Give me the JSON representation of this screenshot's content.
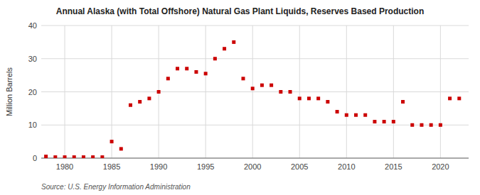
{
  "chart_data": {
    "type": "scatter",
    "title": "Annual Alaska (with Total Offshore) Natural Gas Plant Liquids, Reserves Based Production",
    "y_label": "Million Barrels",
    "source": "Source: U.S. Energy Information Administration",
    "color": "#cc0000",
    "marker": "square",
    "grid": true,
    "xlim": [
      1977.5,
      2023
    ],
    "ylim": [
      0,
      40
    ],
    "xticks": [
      1980,
      1985,
      1990,
      1995,
      2000,
      2005,
      2010,
      2015,
      2020
    ],
    "yticks": [
      0,
      10,
      20,
      30,
      40
    ],
    "x": [
      1978,
      1979,
      1980,
      1981,
      1982,
      1983,
      1984,
      1985,
      1986,
      1987,
      1988,
      1989,
      1990,
      1991,
      1992,
      1993,
      1994,
      1995,
      1996,
      1997,
      1998,
      1999,
      2000,
      2001,
      2002,
      2003,
      2004,
      2005,
      2006,
      2007,
      2008,
      2009,
      2010,
      2011,
      2012,
      2013,
      2014,
      2015,
      2016,
      2017,
      2018,
      2019,
      2020,
      2021,
      2022
    ],
    "values": [
      0.5,
      0.3,
      0.3,
      0.3,
      0.3,
      0.3,
      0.3,
      5.0,
      2.8,
      16.0,
      17.0,
      18.0,
      20.0,
      24.0,
      27.0,
      27.0,
      26.0,
      25.5,
      30.0,
      33.0,
      35.0,
      24.0,
      21.0,
      22.0,
      22.0,
      20.0,
      20.0,
      18.0,
      18.0,
      18.0,
      17.0,
      14.0,
      13.0,
      13.0,
      13.0,
      11.0,
      11.0,
      11.0,
      17.0,
      10.0,
      10.0,
      10.0,
      10.0,
      18.0,
      18.0
    ]
  }
}
